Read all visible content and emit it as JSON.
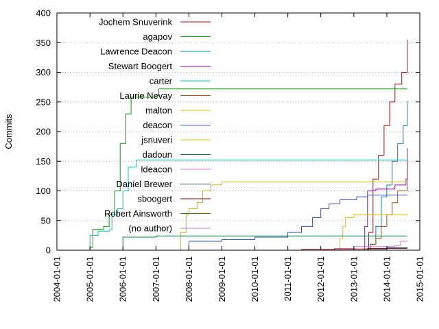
{
  "chart_data": {
    "type": "line",
    "title": "",
    "xlabel": "",
    "ylabel": "Commits",
    "xlim": [
      "2004-01-01",
      "2015-01-01"
    ],
    "ylim": [
      0,
      400
    ],
    "x_ticks": [
      "2004-01-01",
      "2005-01-01",
      "2006-01-01",
      "2007-01-01",
      "2008-01-01",
      "2009-01-01",
      "2010-01-01",
      "2011-01-01",
      "2012-01-01",
      "2013-01-01",
      "2014-01-01",
      "2015-01-01"
    ],
    "y_ticks": [
      0,
      50,
      100,
      150,
      200,
      250,
      300,
      350,
      400
    ],
    "grid": "horizontal dotted at 50-unit intervals",
    "legend_position": "top-left",
    "series": [
      {
        "name": "Jochem Snuverink",
        "color": "#c00000",
        "points": [
          [
            "2013-05-01",
            0
          ],
          [
            "2013-06-15",
            30
          ],
          [
            "2013-08-01",
            120
          ],
          [
            "2013-10-01",
            160
          ],
          [
            "2013-12-01",
            210
          ],
          [
            "2014-02-01",
            250
          ],
          [
            "2014-04-01",
            280
          ],
          [
            "2014-06-15",
            300
          ],
          [
            "2014-08-15",
            355
          ]
        ]
      },
      {
        "name": "agapov",
        "color": "#00a000",
        "points": [
          [
            "2004-12-15",
            0
          ],
          [
            "2005-01-01",
            5
          ],
          [
            "2005-02-01",
            35
          ],
          [
            "2005-06-01",
            40
          ],
          [
            "2005-08-01",
            60
          ],
          [
            "2005-10-01",
            100
          ],
          [
            "2005-12-01",
            180
          ],
          [
            "2006-02-01",
            230
          ],
          [
            "2006-04-01",
            258
          ],
          [
            "2007-01-01",
            260
          ],
          [
            "2007-02-01",
            272
          ],
          [
            "2014-08-15",
            272
          ]
        ]
      },
      {
        "name": "Lawrence Deacon",
        "color": "#0080c0",
        "points": [
          [
            "2013-06-01",
            0
          ],
          [
            "2013-07-01",
            10
          ],
          [
            "2013-09-01",
            40
          ],
          [
            "2013-11-01",
            90
          ],
          [
            "2014-01-01",
            110
          ],
          [
            "2014-03-01",
            150
          ],
          [
            "2014-05-01",
            180
          ],
          [
            "2014-07-01",
            210
          ],
          [
            "2014-08-15",
            252
          ]
        ]
      },
      {
        "name": "Stewart Boogert",
        "color": "#a000c0",
        "points": [
          [
            "2013-04-01",
            0
          ],
          [
            "2013-05-01",
            40
          ],
          [
            "2013-06-01",
            100
          ],
          [
            "2013-09-01",
            103
          ],
          [
            "2014-04-01",
            110
          ],
          [
            "2014-08-01",
            120
          ],
          [
            "2014-08-15",
            172
          ]
        ]
      },
      {
        "name": "carter",
        "color": "#00c0c0",
        "points": [
          [
            "2004-12-15",
            0
          ],
          [
            "2005-01-01",
            25
          ],
          [
            "2005-04-01",
            32
          ],
          [
            "2005-08-01",
            35
          ],
          [
            "2005-09-01",
            60
          ],
          [
            "2005-11-01",
            70
          ],
          [
            "2006-01-01",
            100
          ],
          [
            "2006-03-01",
            140
          ],
          [
            "2006-06-01",
            152
          ],
          [
            "2014-08-15",
            152
          ]
        ]
      },
      {
        "name": "Laurie Nevay",
        "color": "#a05000",
        "points": [
          [
            "2013-05-01",
            0
          ],
          [
            "2013-07-01",
            10
          ],
          [
            "2013-09-01",
            20
          ],
          [
            "2013-11-01",
            40
          ],
          [
            "2014-01-01",
            60
          ],
          [
            "2014-03-01",
            80
          ],
          [
            "2014-05-01",
            100
          ],
          [
            "2014-08-15",
            150
          ]
        ]
      },
      {
        "name": "malton",
        "color": "#c8b400",
        "points": [
          [
            "2007-09-01",
            0
          ],
          [
            "2007-10-01",
            30
          ],
          [
            "2007-12-01",
            60
          ],
          [
            "2008-01-01",
            70
          ],
          [
            "2008-04-01",
            80
          ],
          [
            "2008-06-01",
            100
          ],
          [
            "2008-09-01",
            110
          ],
          [
            "2009-01-01",
            115
          ],
          [
            "2014-08-15",
            115
          ]
        ]
      },
      {
        "name": "deacon",
        "color": "#3050c0",
        "points": [
          [
            "2007-12-01",
            0
          ],
          [
            "2008-01-01",
            15
          ],
          [
            "2009-01-01",
            18
          ],
          [
            "2010-01-01",
            22
          ],
          [
            "2011-01-01",
            30
          ],
          [
            "2011-06-01",
            40
          ],
          [
            "2011-10-01",
            55
          ],
          [
            "2012-01-01",
            70
          ],
          [
            "2012-04-01",
            78
          ],
          [
            "2012-08-01",
            85
          ],
          [
            "2013-02-01",
            90
          ],
          [
            "2013-06-01",
            93
          ],
          [
            "2014-08-15",
            93
          ]
        ]
      },
      {
        "name": "jsnuveri",
        "color": "#e8c000",
        "points": [
          [
            "2012-06-01",
            0
          ],
          [
            "2012-08-01",
            20
          ],
          [
            "2012-09-01",
            40
          ],
          [
            "2012-10-01",
            55
          ],
          [
            "2013-01-01",
            60
          ],
          [
            "2014-08-15",
            62
          ]
        ]
      },
      {
        "name": "dadoun",
        "color": "#008040",
        "points": [
          [
            "2005-11-01",
            0
          ],
          [
            "2006-01-01",
            22
          ],
          [
            "2007-01-01",
            24
          ],
          [
            "2014-08-15",
            24
          ]
        ]
      },
      {
        "name": "ldeacon",
        "color": "#e070e0",
        "points": [
          [
            "2012-03-01",
            0
          ],
          [
            "2012-06-01",
            3
          ],
          [
            "2013-01-01",
            6
          ],
          [
            "2014-04-01",
            8
          ],
          [
            "2014-06-01",
            15
          ],
          [
            "2014-08-15",
            15
          ]
        ]
      },
      {
        "name": "Daniel Brewer",
        "color": "#305070",
        "points": [
          [
            "2013-04-01",
            0
          ],
          [
            "2013-06-01",
            2
          ],
          [
            "2014-01-01",
            4
          ],
          [
            "2014-08-15",
            5
          ]
        ]
      },
      {
        "name": "sboogert",
        "color": "#800000",
        "points": [
          [
            "2011-01-01",
            0
          ],
          [
            "2011-06-01",
            1
          ],
          [
            "2012-06-01",
            2
          ],
          [
            "2013-06-01",
            3
          ],
          [
            "2014-08-15",
            3
          ]
        ]
      },
      {
        "name": "Robert Ainsworth",
        "color": "#408000",
        "points": [
          [
            "2013-06-01",
            0
          ],
          [
            "2014-08-15",
            1
          ]
        ]
      },
      {
        "name": "(no author)",
        "color": "#c080e0",
        "points": [
          [
            "2004-12-15",
            0
          ],
          [
            "2014-08-15",
            1
          ]
        ]
      }
    ]
  }
}
